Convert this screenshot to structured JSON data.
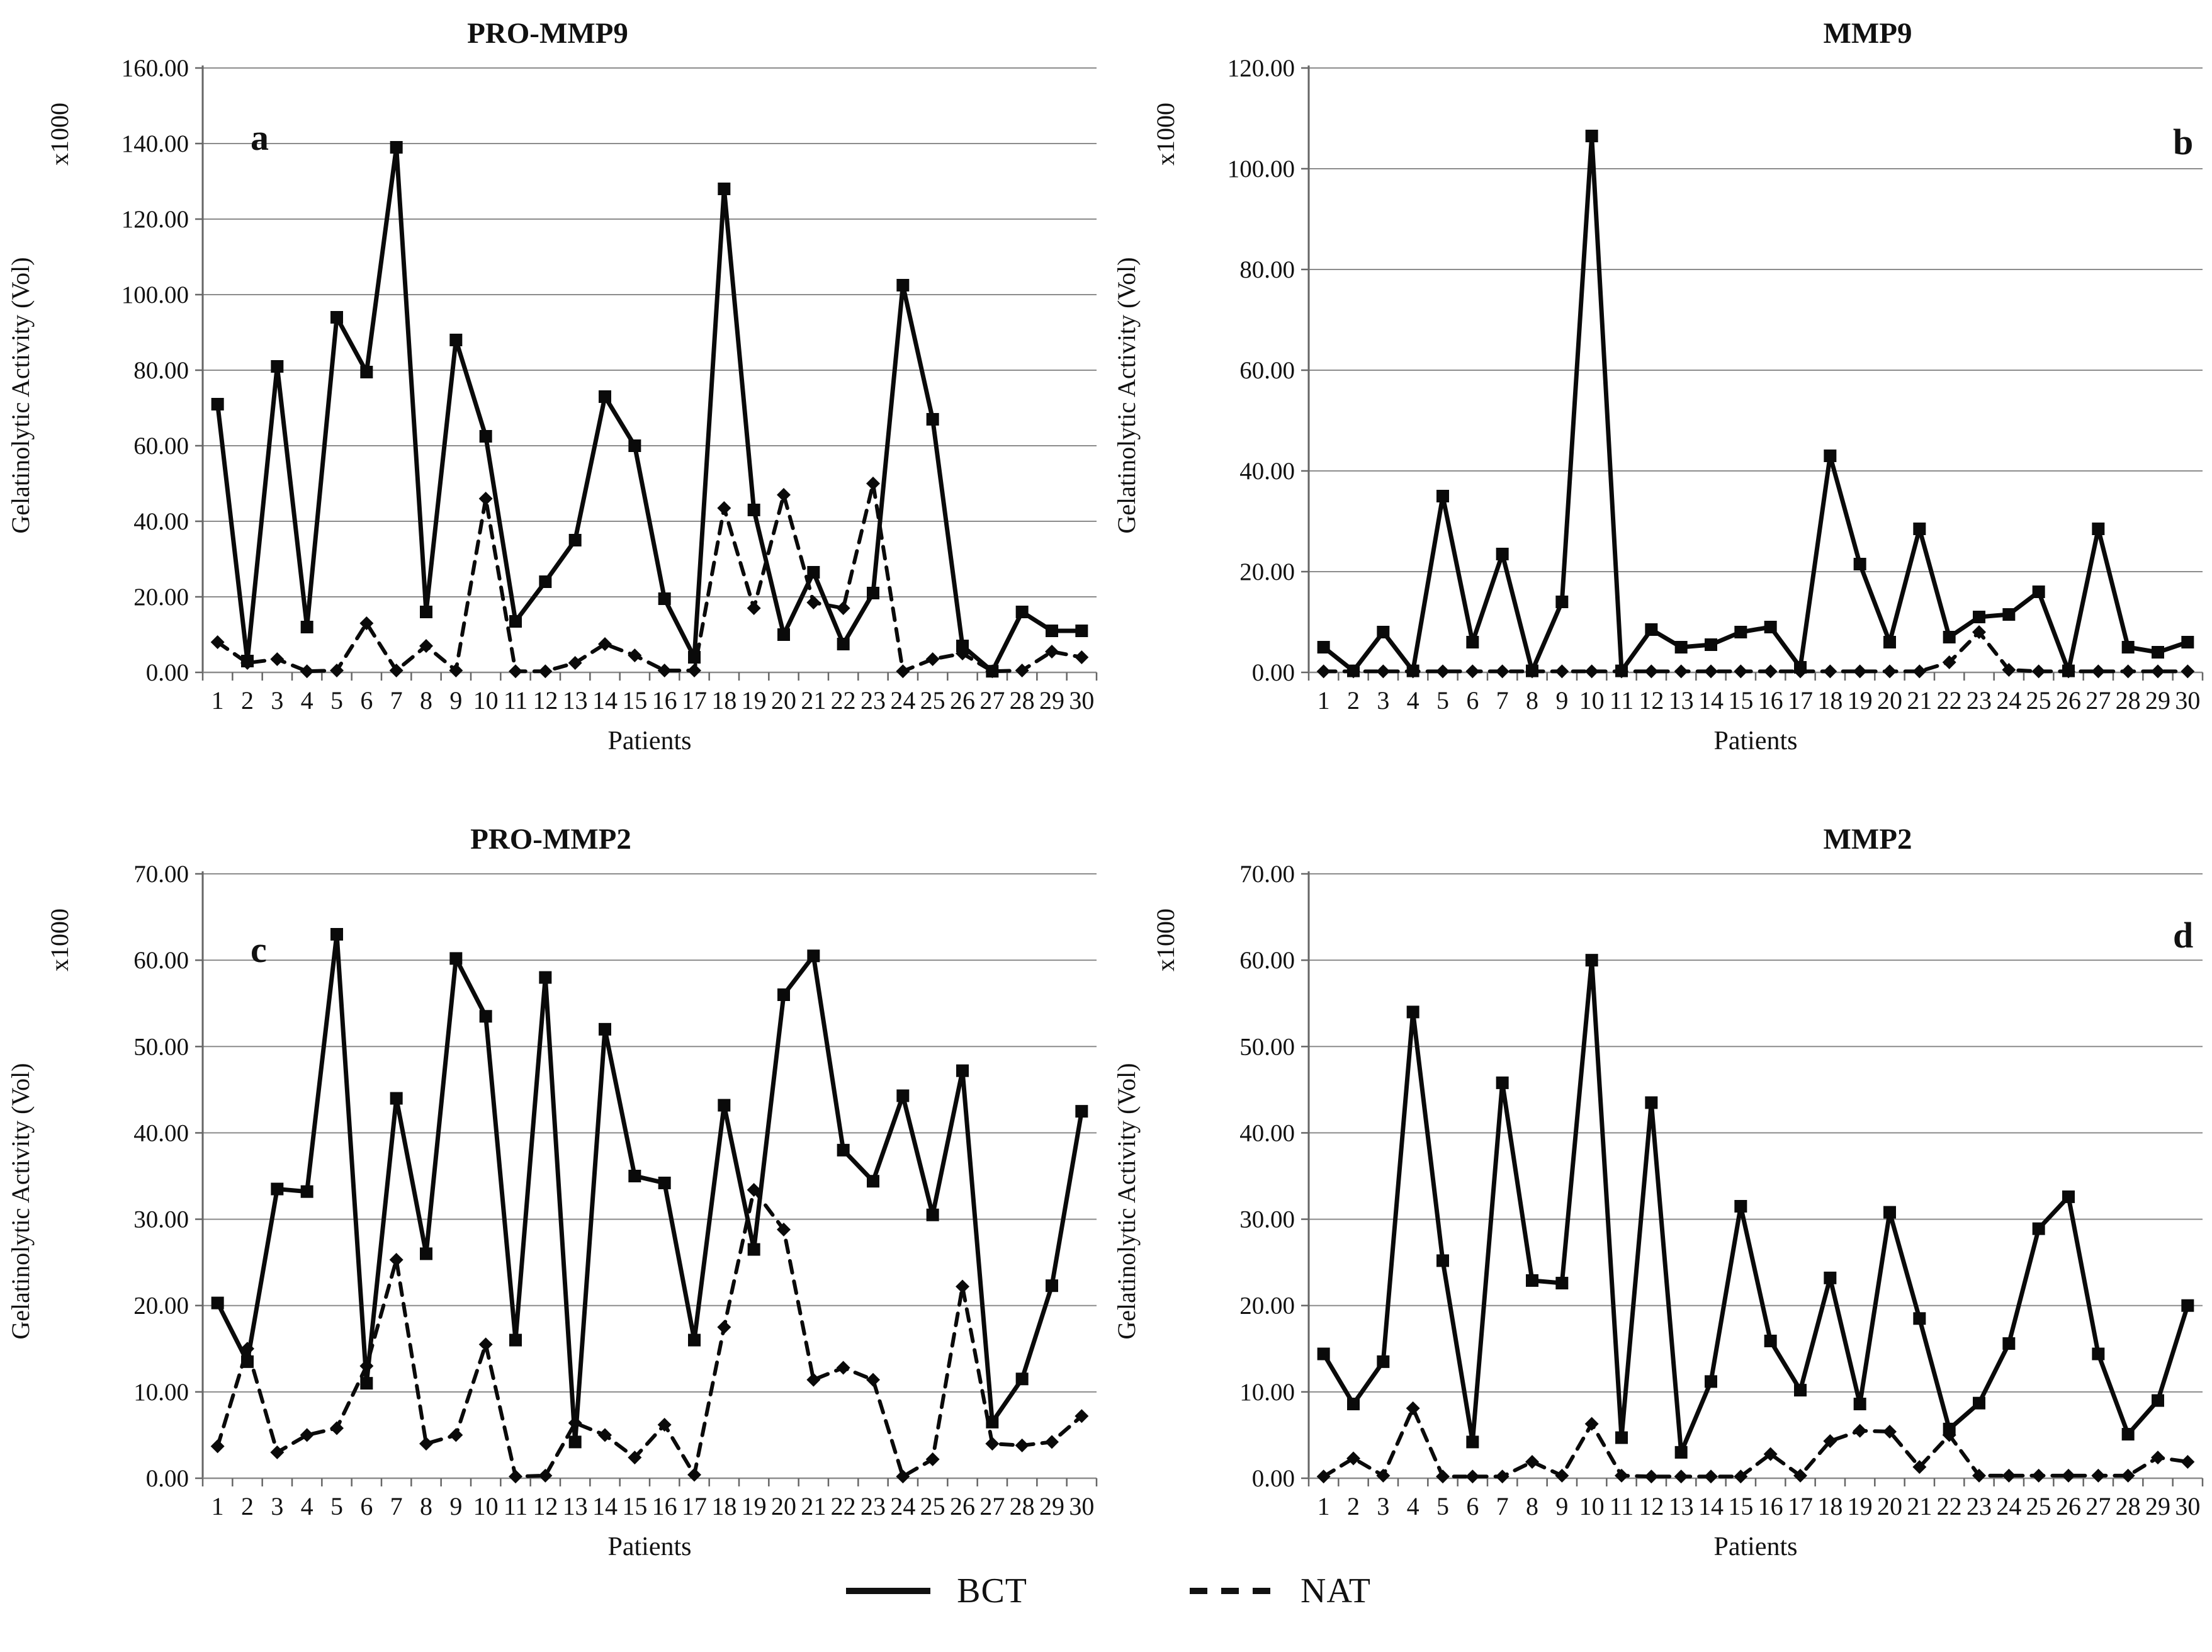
{
  "figure": {
    "xlabel": "Patients",
    "ylabel": "Gelatinolytic Activity (Vol)",
    "ylabel_multiplier": "x1000"
  },
  "chart_data": [
    {
      "type": "line",
      "id": "a",
      "panel_label": "a",
      "title": "PRO-MMP9",
      "xlabel": "Patients",
      "ylabel": "Gelatinolytic Activity (Vol)",
      "ylabel_multiplier": "x1000",
      "x": [
        1,
        2,
        3,
        4,
        5,
        6,
        7,
        8,
        9,
        10,
        11,
        12,
        13,
        14,
        15,
        16,
        17,
        18,
        19,
        20,
        21,
        22,
        23,
        24,
        25,
        26,
        27,
        28,
        29,
        30
      ],
      "ylim": [
        0,
        160
      ],
      "yticks": [
        0,
        20,
        40,
        60,
        80,
        100,
        120,
        140,
        160
      ],
      "grid": true,
      "legend_position": "bottom-center-shared",
      "series": [
        {
          "name": "BCT",
          "style": "solid",
          "marker": "square",
          "values": [
            71,
            3,
            81,
            12,
            94,
            79.5,
            139,
            16,
            88,
            62.5,
            13.5,
            24,
            35,
            73,
            60,
            19.5,
            4,
            128,
            43,
            10,
            26.5,
            7.5,
            21,
            102.5,
            67,
            7,
            0.3,
            16,
            11,
            11
          ]
        },
        {
          "name": "NAT",
          "style": "dashed",
          "marker": "diamond",
          "values": [
            8,
            2.5,
            3.5,
            0.3,
            0.5,
            13,
            0.5,
            7,
            0.5,
            46,
            0.3,
            0.3,
            2.5,
            7.5,
            4.5,
            0.5,
            0.5,
            43.5,
            17,
            47,
            18.5,
            17,
            50,
            0.3,
            3.5,
            5,
            0.3,
            0.5,
            5.5,
            4
          ]
        }
      ]
    },
    {
      "type": "line",
      "id": "b",
      "panel_label": "b",
      "title": "MMP9",
      "xlabel": "Patients",
      "ylabel": "Gelatinolytic Activity (Vol)",
      "ylabel_multiplier": "x1000",
      "x": [
        1,
        2,
        3,
        4,
        5,
        6,
        7,
        8,
        9,
        10,
        11,
        12,
        13,
        14,
        15,
        16,
        17,
        18,
        19,
        20,
        21,
        22,
        23,
        24,
        25,
        26,
        27,
        28,
        29,
        30
      ],
      "ylim": [
        0,
        120
      ],
      "yticks": [
        0,
        20,
        40,
        60,
        80,
        100,
        120
      ],
      "grid": true,
      "legend_position": "bottom-center-shared",
      "series": [
        {
          "name": "BCT",
          "style": "solid",
          "marker": "square",
          "values": [
            5,
            0.3,
            8,
            0.3,
            35,
            6,
            23.5,
            0.3,
            14,
            106.5,
            0.3,
            8.5,
            5,
            5.5,
            8,
            9,
            1,
            43,
            21.5,
            6,
            28.5,
            7,
            11,
            11.5,
            16,
            0.3,
            28.5,
            5,
            4,
            6
          ]
        },
        {
          "name": "NAT",
          "style": "dashed",
          "marker": "diamond",
          "values": [
            0.2,
            0.2,
            0.2,
            0.2,
            0.2,
            0.2,
            0.2,
            0.2,
            0.2,
            0.2,
            0.2,
            0.2,
            0.2,
            0.2,
            0.2,
            0.2,
            0.2,
            0.2,
            0.2,
            0.2,
            0.2,
            2,
            8,
            0.5,
            0.2,
            0.2,
            0.2,
            0.2,
            0.2,
            0.2
          ]
        }
      ]
    },
    {
      "type": "line",
      "id": "c",
      "panel_label": "c",
      "title": "PRO-MMP2",
      "xlabel": "Patients",
      "ylabel": "Gelatinolytic Activity (Vol)",
      "ylabel_multiplier": "x1000",
      "x": [
        1,
        2,
        3,
        4,
        5,
        6,
        7,
        8,
        9,
        10,
        11,
        12,
        13,
        14,
        15,
        16,
        17,
        18,
        19,
        20,
        21,
        22,
        23,
        24,
        25,
        26,
        27,
        28,
        29,
        30
      ],
      "ylim": [
        0,
        70
      ],
      "yticks": [
        0,
        10,
        20,
        30,
        40,
        50,
        60,
        70
      ],
      "grid": true,
      "legend_position": "bottom-center-shared",
      "series": [
        {
          "name": "BCT",
          "style": "solid",
          "marker": "square",
          "values": [
            20.3,
            13.5,
            33.5,
            33.2,
            63,
            11,
            44,
            26,
            60.2,
            53.5,
            16,
            58,
            4.2,
            52,
            35,
            34.2,
            16,
            43.2,
            26.5,
            56,
            60.5,
            38,
            34.4,
            44.3,
            30.5,
            47.2,
            6.5,
            11.5,
            22.3,
            42.5
          ]
        },
        {
          "name": "NAT",
          "style": "dashed",
          "marker": "diamond",
          "values": [
            3.7,
            15,
            3,
            5,
            5.8,
            13,
            25.3,
            4,
            5,
            15.5,
            0.2,
            0.3,
            6.4,
            5,
            2.4,
            6.2,
            0.4,
            17.5,
            33.4,
            28.8,
            11.4,
            12.8,
            11.4,
            0.2,
            2.2,
            22.2,
            4,
            3.8,
            4.2,
            7.2
          ]
        }
      ]
    },
    {
      "type": "line",
      "id": "d",
      "panel_label": "d",
      "title": "MMP2",
      "xlabel": "Patients",
      "ylabel": "Gelatinolytic Activity (Vol)",
      "ylabel_multiplier": "x1000",
      "x": [
        1,
        2,
        3,
        4,
        5,
        6,
        7,
        8,
        9,
        10,
        11,
        12,
        13,
        14,
        15,
        16,
        17,
        18,
        19,
        20,
        21,
        22,
        23,
        24,
        25,
        26,
        27,
        28,
        29,
        30
      ],
      "ylim": [
        0,
        70
      ],
      "yticks": [
        0,
        10,
        20,
        30,
        40,
        50,
        60,
        70
      ],
      "grid": true,
      "legend_position": "bottom-center-shared",
      "series": [
        {
          "name": "BCT",
          "style": "solid",
          "marker": "square",
          "values": [
            14.4,
            8.6,
            13.5,
            54,
            25.2,
            4.2,
            45.8,
            22.9,
            22.6,
            60,
            4.7,
            43.5,
            3,
            11.2,
            31.5,
            15.9,
            10.2,
            23.2,
            8.6,
            30.8,
            18.5,
            5.7,
            8.7,
            15.6,
            28.9,
            32.6,
            14.4,
            5.1,
            9,
            20
          ]
        },
        {
          "name": "NAT",
          "style": "dashed",
          "marker": "diamond",
          "values": [
            0.2,
            2.3,
            0.3,
            8.1,
            0.2,
            0.2,
            0.2,
            1.9,
            0.3,
            6.3,
            0.3,
            0.2,
            0.2,
            0.2,
            0.2,
            2.8,
            0.3,
            4.3,
            5.5,
            5.4,
            1.3,
            5,
            0.3,
            0.3,
            0.3,
            0.3,
            0.3,
            0.3,
            2.4,
            1.9
          ]
        }
      ]
    }
  ],
  "legend": {
    "items": [
      {
        "label": "BCT",
        "line": "solid"
      },
      {
        "label": "NAT",
        "line": "dashed"
      }
    ]
  }
}
